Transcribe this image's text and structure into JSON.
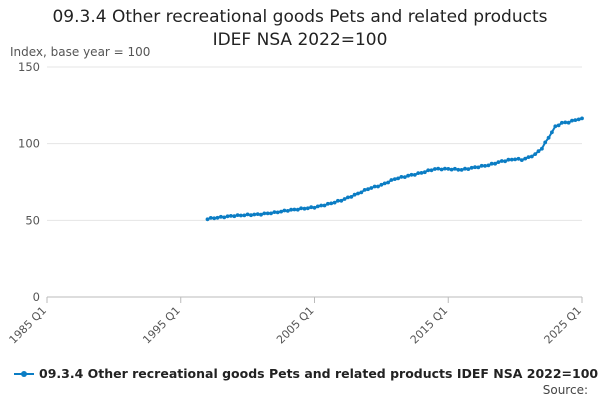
{
  "chart_data": {
    "type": "line",
    "title_line1": "09.3.4 Other recreational goods Pets and related products",
    "title_line2": "IDEF NSA 2022=100",
    "ylabel": "Index, base year = 100",
    "ylim": [
      0,
      150
    ],
    "yticks": [
      0,
      50,
      100,
      150
    ],
    "xlim": [
      1985.0,
      2025.0
    ],
    "xticks": [
      {
        "value": 1985.0,
        "label": "1985 Q1"
      },
      {
        "value": 1995.0,
        "label": "1995 Q1"
      },
      {
        "value": 2005.0,
        "label": "2005 Q1"
      },
      {
        "value": 2015.0,
        "label": "2015 Q1"
      },
      {
        "value": 2025.0,
        "label": "2025 Q1"
      }
    ],
    "series": [
      {
        "name": "09.3.4 Other recreational goods Pets and related products IDEF NSA 2022=100",
        "color": "#0b7dc4",
        "points": [
          [
            1997.0,
            51.0
          ],
          [
            1998.0,
            52.0
          ],
          [
            1999.0,
            53.0
          ],
          [
            2000.0,
            53.5
          ],
          [
            2001.0,
            54.0
          ],
          [
            2002.0,
            55.0
          ],
          [
            2003.0,
            56.5
          ],
          [
            2004.0,
            57.5
          ],
          [
            2005.0,
            58.5
          ],
          [
            2006.0,
            60.5
          ],
          [
            2007.0,
            63.0
          ],
          [
            2008.0,
            66.5
          ],
          [
            2009.0,
            70.5
          ],
          [
            2010.0,
            73.0
          ],
          [
            2011.0,
            77.0
          ],
          [
            2012.0,
            79.0
          ],
          [
            2013.0,
            81.0
          ],
          [
            2014.0,
            83.5
          ],
          [
            2015.0,
            83.5
          ],
          [
            2016.0,
            83.0
          ],
          [
            2017.0,
            84.5
          ],
          [
            2018.0,
            86.0
          ],
          [
            2019.0,
            88.5
          ],
          [
            2020.0,
            90.0
          ],
          [
            2020.5,
            89.5
          ],
          [
            2021.0,
            91.0
          ],
          [
            2021.5,
            93.0
          ],
          [
            2022.0,
            97.0
          ],
          [
            2022.5,
            104.0
          ],
          [
            2023.0,
            111.0
          ],
          [
            2023.5,
            113.5
          ],
          [
            2024.0,
            114.0
          ],
          [
            2024.5,
            115.5
          ],
          [
            2025.0,
            116.5
          ]
        ]
      }
    ],
    "legend_label": "09.3.4 Other recreational goods Pets and related products IDEF NSA 2022=100",
    "source_label": "Source:"
  }
}
